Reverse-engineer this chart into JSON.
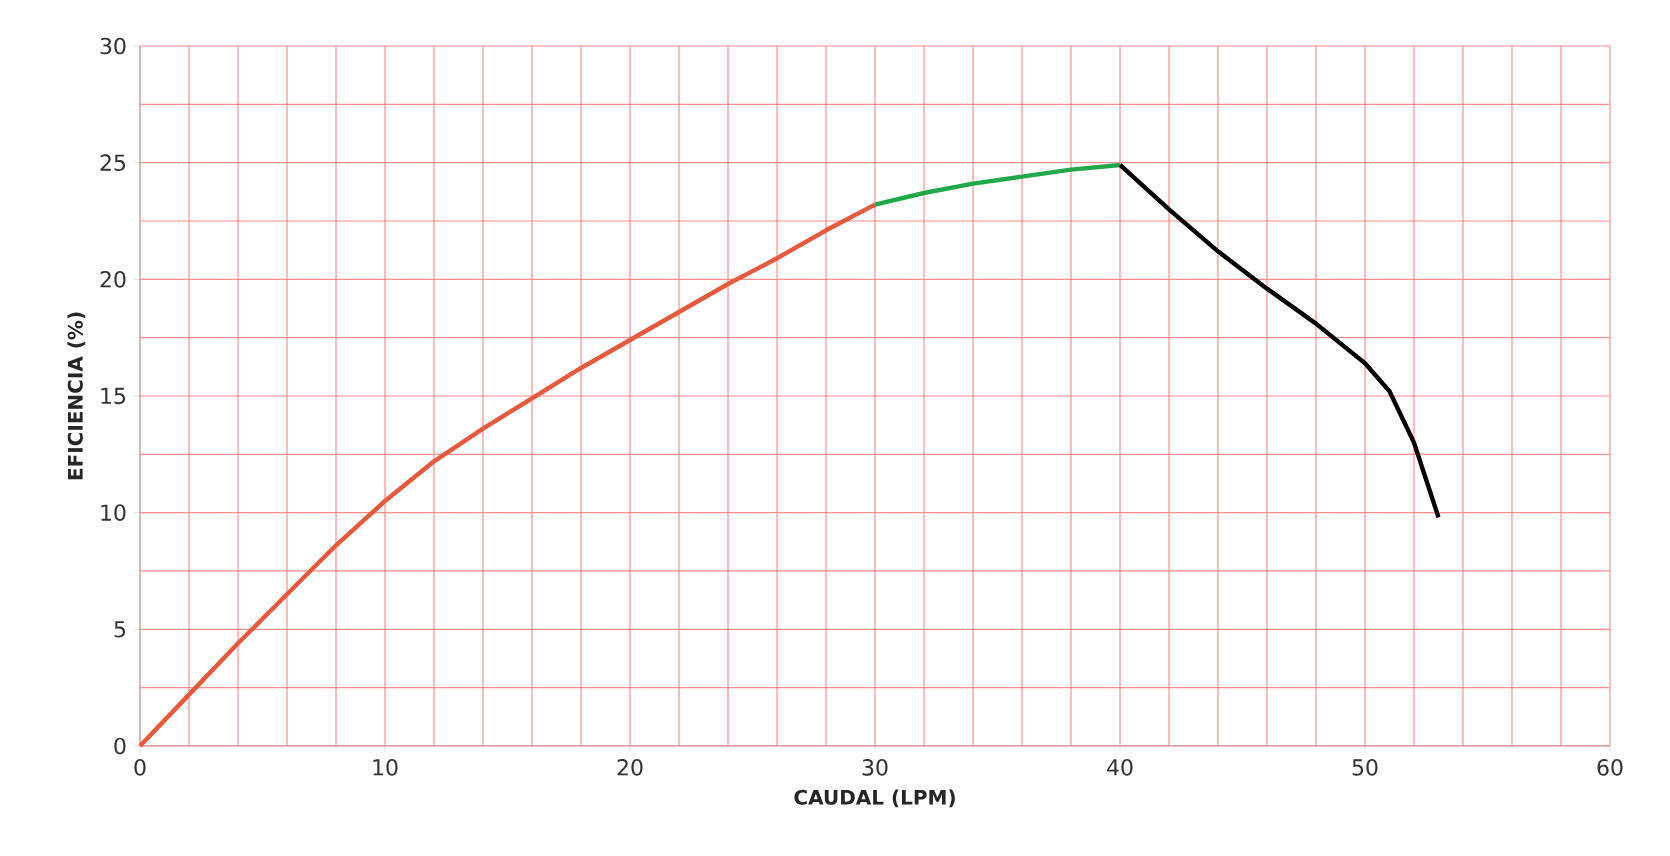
{
  "chart_data": {
    "type": "line",
    "xlabel": "CAUDAL (LPM)",
    "ylabel": "EFICIENCIA  (%)",
    "xlim": [
      0,
      60
    ],
    "ylim": [
      0,
      30
    ],
    "xticks": [
      0,
      10,
      20,
      30,
      40,
      50,
      60
    ],
    "yticks": [
      0,
      5,
      10,
      15,
      20,
      25,
      30
    ],
    "grid": true,
    "marker": "none",
    "line_style": "solid",
    "series": [
      {
        "color": "#e8583c",
        "x": [
          0,
          2,
          4,
          6,
          8,
          10,
          12,
          14,
          16,
          18,
          20,
          22,
          24,
          26,
          28,
          30
        ],
        "values": [
          0,
          2.2,
          4.4,
          6.5,
          8.6,
          10.5,
          12.2,
          13.6,
          14.9,
          16.2,
          17.4,
          18.6,
          19.8,
          20.9,
          22.1,
          23.2
        ]
      },
      {
        "color": "#21a84a",
        "x": [
          30,
          32,
          34,
          36,
          38,
          40
        ],
        "values": [
          23.2,
          23.7,
          24.1,
          24.4,
          24.7,
          24.9
        ]
      },
      {
        "color": "#000000",
        "x": [
          40,
          42,
          44,
          46,
          48,
          50,
          51,
          52,
          53
        ],
        "values": [
          24.9,
          23.0,
          21.2,
          19.6,
          18.1,
          16.4,
          15.2,
          13.0,
          9.8
        ]
      }
    ]
  }
}
